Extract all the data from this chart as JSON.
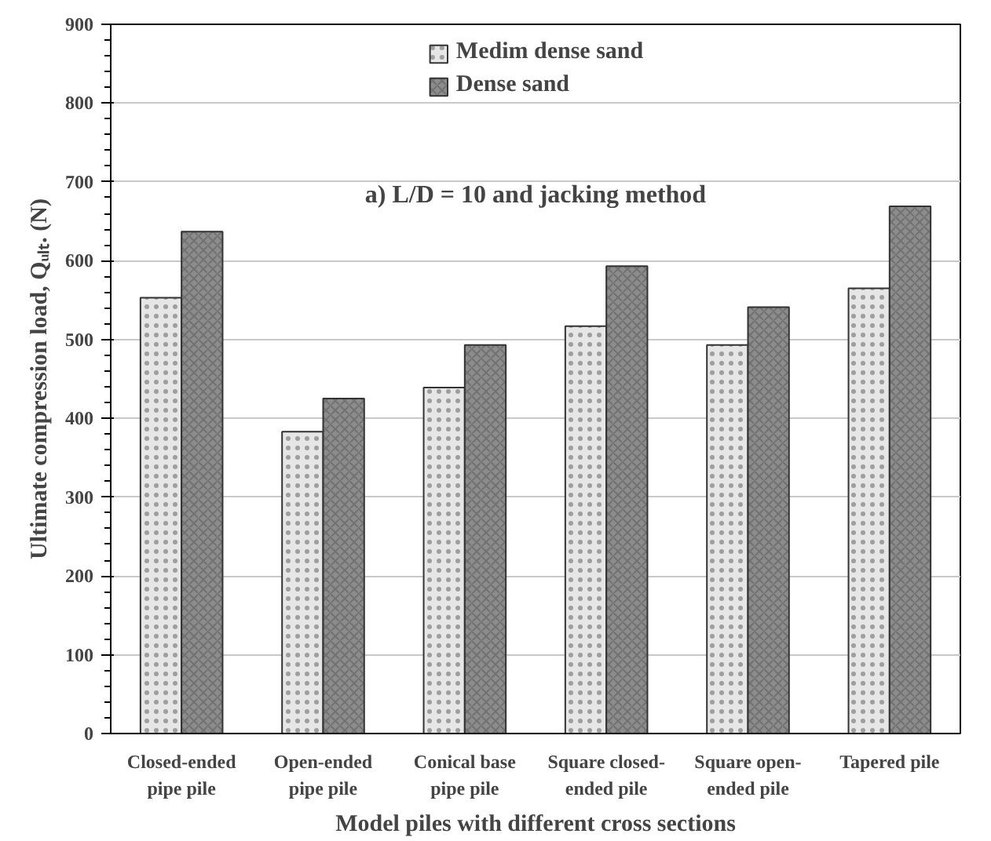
{
  "chart_data": {
    "type": "bar",
    "xlabel": "Model piles with different cross sections",
    "ylabel": "Ultimate compression load, Qᵤₗₜ. (N)",
    "categories": [
      "Closed-ended\npipe pile",
      "Open-ended\npipe pile",
      "Conical base\npipe pile",
      "Square closed-\nended pile",
      "Square open-\nended pile",
      "Tapered pile"
    ],
    "series": [
      {
        "name": "Medim dense sand",
        "color": "#e6e6e6",
        "values": [
          553,
          383,
          439,
          517,
          493,
          565
        ]
      },
      {
        "name": "Dense sand",
        "color": "#8c8c8c",
        "values": [
          637,
          425,
          493,
          593,
          541,
          669
        ]
      }
    ],
    "annotations": [
      "a) L/D = 10 and jacking method"
    ],
    "ylim": [
      0,
      900
    ],
    "yticks": [
      0,
      100,
      200,
      300,
      400,
      500,
      600,
      700,
      800,
      900
    ],
    "grid": "y",
    "legend": "top"
  }
}
